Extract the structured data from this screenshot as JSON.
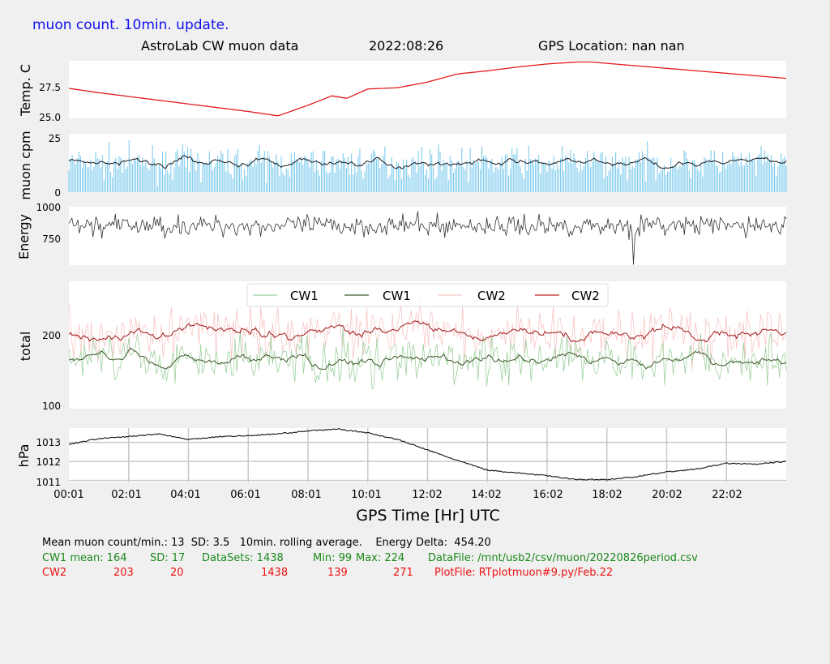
{
  "header": {
    "top_label": "muon count.  10min. update.",
    "title": "AstroLab CW muon data",
    "date": "2022:08:26",
    "gps_location": "GPS Location: nan   nan",
    "color_top_label": "#1010ee"
  },
  "colors": {
    "temp": "#e41a1c",
    "muon_bars": "#7ecbee",
    "muon_line": "#1a1a1a",
    "energy": "#333333",
    "cw1_raw": "#9ed09e",
    "cw1_avg": "#3c5a2a",
    "cw2_raw": "#f7c6c6",
    "cw2_avg": "#a01818",
    "pressure": "#111111",
    "grid": "#c8c8c8"
  },
  "chart_data": [
    {
      "type": "line",
      "ylabel": "Temp. C",
      "ylim": [
        24.8,
        29.4
      ],
      "y_ticks": [
        "25.0",
        "27.5"
      ],
      "x": [
        0,
        1,
        2,
        3,
        4,
        5,
        6,
        7,
        8,
        8.8,
        9.3,
        10,
        11,
        12,
        13,
        14,
        15,
        16,
        17,
        17.5,
        18,
        19,
        20,
        21,
        22,
        23,
        24
      ],
      "values": [
        27.2,
        26.85,
        26.55,
        26.25,
        25.95,
        25.65,
        25.35,
        25.0,
        25.85,
        26.6,
        26.4,
        27.15,
        27.25,
        27.7,
        28.35,
        28.6,
        28.9,
        29.15,
        29.3,
        29.3,
        29.2,
        29.0,
        28.8,
        28.6,
        28.4,
        28.2,
        28.0
      ]
    },
    {
      "type": "line",
      "ylabel": "muon cpm",
      "ylim": [
        0,
        26
      ],
      "y_ticks": [
        "0",
        "25"
      ],
      "series": [
        {
          "values": []
        },
        {
          "values": []
        }
      ]
    },
    {
      "type": "line",
      "ylabel": "Energy",
      "ylim": [
        570,
        1000
      ],
      "y_ticks": [
        "750",
        "1000"
      ],
      "values": []
    },
    {
      "type": "line",
      "ylabel": "total",
      "ylim": [
        95,
        275
      ],
      "y_ticks": [
        "100",
        "200"
      ],
      "legend_position": "top-center",
      "series": [
        {
          "name": "CW1",
          "values": []
        },
        {
          "name": "CW1",
          "values": []
        },
        {
          "name": "CW2",
          "values": []
        },
        {
          "name": "CW2",
          "values": []
        }
      ]
    },
    {
      "type": "line",
      "ylabel": "hPa",
      "ylim": [
        1010.9,
        1013.75
      ],
      "y_ticks": [
        "1011",
        "1012",
        "1013"
      ],
      "grid": true,
      "x": [
        0,
        1,
        2,
        3,
        4,
        5,
        6,
        7,
        8,
        9,
        10,
        11,
        12,
        13,
        14,
        15,
        16,
        17,
        18,
        19,
        20,
        21,
        22,
        23,
        24
      ],
      "values": [
        1012.9,
        1013.2,
        1013.3,
        1013.45,
        1013.15,
        1013.3,
        1013.35,
        1013.45,
        1013.6,
        1013.7,
        1013.5,
        1013.15,
        1012.6,
        1012.05,
        1011.55,
        1011.4,
        1011.25,
        1011.05,
        1011.05,
        1011.2,
        1011.45,
        1011.6,
        1011.9,
        1011.85,
        1012.0
      ]
    }
  ],
  "x_axis": {
    "label": "GPS Time  [Hr] UTC",
    "ticks": [
      "00:01",
      "02:01",
      "04:01",
      "06:01",
      "08:01",
      "10:01",
      "12:02",
      "14:02",
      "16:02",
      "18:02",
      "20:02",
      "22:02"
    ]
  },
  "footer": {
    "line1": "Mean muon count/min.: 13  SD: 3.5   10min. rolling average.    Energy Delta:  454.20",
    "cw1": {
      "label": "CW1 mean: 164",
      "sd": "SD: 17",
      "datasets": "DataSets: 1438",
      "min": "Min: 99",
      "max": "Max: 224",
      "file": "DataFile: /mnt/usb2/csv/muon/20220826period.csv"
    },
    "cw2": {
      "label": "CW2",
      "mean": "203",
      "sd": "20",
      "datasets": "1438",
      "min": "139",
      "max": "271",
      "file": "PlotFile: RTplotmuon#9.py/Feb.22"
    }
  }
}
